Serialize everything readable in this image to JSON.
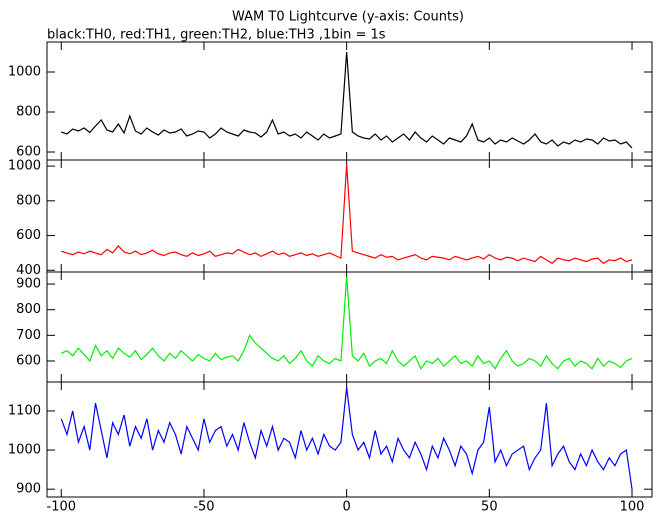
{
  "chart_data": [
    {
      "type": "line",
      "title": "WAM T0 Lightcurve (y-axis: Counts)",
      "subtitle": "black:TH0, red:TH1, green:TH2, blue:TH3 ,1bin = 1s",
      "x": [
        -100,
        -98,
        -96,
        -94,
        -92,
        -90,
        -88,
        -86,
        -84,
        -82,
        -80,
        -78,
        -76,
        -74,
        -72,
        -70,
        -68,
        -66,
        -64,
        -62,
        -60,
        -58,
        -56,
        -54,
        -52,
        -50,
        -48,
        -46,
        -44,
        -42,
        -40,
        -38,
        -36,
        -34,
        -32,
        -30,
        -28,
        -26,
        -24,
        -22,
        -20,
        -18,
        -16,
        -14,
        -12,
        -10,
        -8,
        -6,
        -4,
        -2,
        0,
        2,
        4,
        6,
        8,
        10,
        12,
        14,
        16,
        18,
        20,
        22,
        24,
        26,
        28,
        30,
        32,
        34,
        36,
        38,
        40,
        42,
        44,
        46,
        48,
        50,
        52,
        54,
        56,
        58,
        60,
        62,
        64,
        66,
        68,
        70,
        72,
        74,
        76,
        78,
        80,
        82,
        84,
        86,
        88,
        90,
        92,
        94,
        96,
        98,
        100
      ],
      "xlim": [
        -105,
        107
      ],
      "xticks": [
        -100,
        -50,
        0,
        50,
        100
      ],
      "ylim": [
        560,
        1150
      ],
      "yticks": [
        600,
        800,
        1000
      ],
      "series": [
        {
          "color": "#000000",
          "values": [
            700,
            690,
            715,
            705,
            720,
            698,
            730,
            760,
            710,
            700,
            740,
            695,
            780,
            705,
            690,
            720,
            700,
            685,
            710,
            695,
            700,
            715,
            680,
            690,
            705,
            700,
            670,
            690,
            720,
            700,
            690,
            680,
            710,
            700,
            695,
            675,
            700,
            760,
            690,
            700,
            680,
            690,
            670,
            700,
            680,
            660,
            690,
            670,
            680,
            690,
            1100,
            700,
            680,
            670,
            665,
            690,
            660,
            680,
            650,
            670,
            690,
            660,
            700,
            670,
            650,
            680,
            660,
            640,
            670,
            660,
            650,
            680,
            740,
            660,
            650,
            670,
            640,
            660,
            650,
            670,
            655,
            640,
            660,
            690,
            650,
            640,
            660,
            630,
            650,
            640,
            660,
            650,
            665,
            660,
            640,
            670,
            655,
            660,
            640,
            650,
            620
          ]
        }
      ]
    },
    {
      "type": "line",
      "x": [
        -100,
        -98,
        -96,
        -94,
        -92,
        -90,
        -88,
        -86,
        -84,
        -82,
        -80,
        -78,
        -76,
        -74,
        -72,
        -70,
        -68,
        -66,
        -64,
        -62,
        -60,
        -58,
        -56,
        -54,
        -52,
        -50,
        -48,
        -46,
        -44,
        -42,
        -40,
        -38,
        -36,
        -34,
        -32,
        -30,
        -28,
        -26,
        -24,
        -22,
        -20,
        -18,
        -16,
        -14,
        -12,
        -10,
        -8,
        -6,
        -4,
        -2,
        0,
        2,
        4,
        6,
        8,
        10,
        12,
        14,
        16,
        18,
        20,
        22,
        24,
        26,
        28,
        30,
        32,
        34,
        36,
        38,
        40,
        42,
        44,
        46,
        48,
        50,
        52,
        54,
        56,
        58,
        60,
        62,
        64,
        66,
        68,
        70,
        72,
        74,
        76,
        78,
        80,
        82,
        84,
        86,
        88,
        90,
        92,
        94,
        96,
        98,
        100
      ],
      "xlim": [
        -105,
        107
      ],
      "xticks": [
        -100,
        -50,
        0,
        50,
        100
      ],
      "ylim": [
        390,
        1035
      ],
      "yticks": [
        400,
        600,
        800,
        1000
      ],
      "series": [
        {
          "color": "#ff0000",
          "values": [
            510,
            500,
            490,
            505,
            495,
            510,
            500,
            490,
            520,
            500,
            540,
            505,
            495,
            510,
            490,
            500,
            515,
            495,
            485,
            500,
            505,
            490,
            480,
            500,
            485,
            495,
            510,
            480,
            490,
            500,
            495,
            520,
            505,
            490,
            500,
            480,
            495,
            510,
            490,
            500,
            480,
            490,
            500,
            485,
            495,
            480,
            490,
            500,
            485,
            470,
            1010,
            510,
            500,
            490,
            480,
            470,
            490,
            475,
            480,
            460,
            470,
            480,
            490,
            470,
            460,
            480,
            475,
            470,
            460,
            480,
            470,
            460,
            470,
            480,
            465,
            490,
            470,
            460,
            475,
            470,
            455,
            470,
            460,
            450,
            480,
            460,
            440,
            470,
            460,
            455,
            470,
            460,
            450,
            465,
            470,
            440,
            460,
            455,
            470,
            450,
            460
          ]
        }
      ]
    },
    {
      "type": "line",
      "x": [
        -100,
        -98,
        -96,
        -94,
        -92,
        -90,
        -88,
        -86,
        -84,
        -82,
        -80,
        -78,
        -76,
        -74,
        -72,
        -70,
        -68,
        -66,
        -64,
        -62,
        -60,
        -58,
        -56,
        -54,
        -52,
        -50,
        -48,
        -46,
        -44,
        -42,
        -40,
        -38,
        -36,
        -34,
        -32,
        -30,
        -28,
        -26,
        -24,
        -22,
        -20,
        -18,
        -16,
        -14,
        -12,
        -10,
        -8,
        -6,
        -4,
        -2,
        0,
        2,
        4,
        6,
        8,
        10,
        12,
        14,
        16,
        18,
        20,
        22,
        24,
        26,
        28,
        30,
        32,
        34,
        36,
        38,
        40,
        42,
        44,
        46,
        48,
        50,
        52,
        54,
        56,
        58,
        60,
        62,
        64,
        66,
        68,
        70,
        72,
        74,
        76,
        78,
        80,
        82,
        84,
        86,
        88,
        90,
        92,
        94,
        96,
        98,
        100
      ],
      "xlim": [
        -105,
        107
      ],
      "xticks": [
        -100,
        -50,
        0,
        50,
        100
      ],
      "ylim": [
        518,
        947
      ],
      "yticks": [
        600,
        700,
        800,
        900
      ],
      "series": [
        {
          "color": "#00ee00",
          "values": [
            630,
            640,
            620,
            650,
            625,
            600,
            660,
            620,
            640,
            610,
            650,
            630,
            615,
            640,
            605,
            625,
            650,
            620,
            600,
            630,
            610,
            640,
            620,
            600,
            625,
            610,
            600,
            630,
            605,
            615,
            620,
            600,
            640,
            700,
            670,
            650,
            630,
            610,
            600,
            620,
            590,
            610,
            640,
            600,
            580,
            620,
            600,
            590,
            610,
            600,
            930,
            620,
            600,
            630,
            580,
            600,
            610,
            590,
            640,
            600,
            580,
            600,
            620,
            570,
            600,
            590,
            610,
            580,
            600,
            620,
            590,
            600,
            580,
            620,
            590,
            600,
            570,
            610,
            640,
            600,
            580,
            590,
            610,
            600,
            580,
            620,
            590,
            570,
            600,
            610,
            580,
            600,
            590,
            570,
            610,
            580,
            600,
            590,
            575,
            600,
            610
          ]
        }
      ]
    },
    {
      "type": "line",
      "x": [
        -100,
        -98,
        -96,
        -94,
        -92,
        -90,
        -88,
        -86,
        -84,
        -82,
        -80,
        -78,
        -76,
        -74,
        -72,
        -70,
        -68,
        -66,
        -64,
        -62,
        -60,
        -58,
        -56,
        -54,
        -52,
        -50,
        -48,
        -46,
        -44,
        -42,
        -40,
        -38,
        -36,
        -34,
        -32,
        -30,
        -28,
        -26,
        -24,
        -22,
        -20,
        -18,
        -16,
        -14,
        -12,
        -10,
        -8,
        -6,
        -4,
        -2,
        0,
        2,
        4,
        6,
        8,
        10,
        12,
        14,
        16,
        18,
        20,
        22,
        24,
        26,
        28,
        30,
        32,
        34,
        36,
        38,
        40,
        42,
        44,
        46,
        48,
        50,
        52,
        54,
        56,
        58,
        60,
        62,
        64,
        66,
        68,
        70,
        72,
        74,
        76,
        78,
        80,
        82,
        84,
        86,
        88,
        90,
        92,
        94,
        96,
        98,
        100
      ],
      "xlim": [
        -105,
        107
      ],
      "xticks": [
        -100,
        -50,
        0,
        50,
        100
      ],
      "ylim": [
        880,
        1174
      ],
      "yticks": [
        900,
        1000,
        1100
      ],
      "series": [
        {
          "color": "#0000ff",
          "values": [
            1080,
            1040,
            1100,
            1020,
            1060,
            1000,
            1120,
            1050,
            980,
            1070,
            1040,
            1090,
            1010,
            1060,
            1030,
            1080,
            1000,
            1050,
            1020,
            1070,
            1040,
            990,
            1060,
            1030,
            1000,
            1080,
            1020,
            1050,
            1060,
            1010,
            1040,
            1000,
            1070,
            1020,
            980,
            1050,
            1010,
            1060,
            1000,
            1030,
            1020,
            980,
            1050,
            1000,
            1030,
            990,
            1040,
            1010,
            1000,
            1020,
            1160,
            1040,
            1000,
            1020,
            980,
            1050,
            990,
            1010,
            970,
            1030,
            1000,
            980,
            1020,
            990,
            950,
            1010,
            980,
            1030,
            1000,
            960,
            1010,
            990,
            940,
            1000,
            1020,
            1110,
            970,
            1000,
            960,
            990,
            1000,
            1010,
            950,
            980,
            1000,
            1120,
            960,
            990,
            1010,
            970,
            950,
            990,
            960,
            1000,
            970,
            950,
            980,
            960,
            990,
            1000,
            900
          ]
        }
      ]
    }
  ]
}
